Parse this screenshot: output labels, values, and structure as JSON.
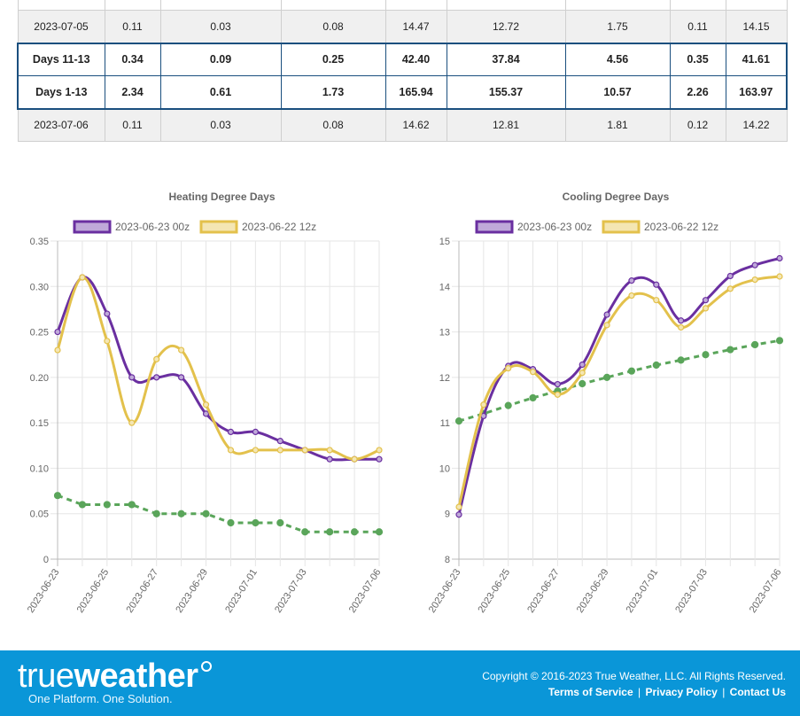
{
  "table": {
    "rows": [
      {
        "style": "top-cut",
        "cells": [
          "",
          "",
          "",
          "",
          "",
          "",
          "",
          "",
          ""
        ]
      },
      {
        "style": "plain",
        "cells": [
          "2023-07-05",
          "0.11",
          "0.03",
          "0.08",
          "14.47",
          "12.72",
          "1.75",
          "0.11",
          "14.15"
        ]
      },
      {
        "style": "hl r1",
        "cells": [
          "Days 11-13",
          "0.34",
          "0.09",
          "0.25",
          "42.40",
          "37.84",
          "4.56",
          "0.35",
          "41.61"
        ]
      },
      {
        "style": "hl r2",
        "cells": [
          "Days 1-13",
          "2.34",
          "0.61",
          "1.73",
          "165.94",
          "155.37",
          "10.57",
          "2.26",
          "163.97"
        ]
      },
      {
        "style": "plain",
        "cells": [
          "2023-07-06",
          "0.11",
          "0.03",
          "0.08",
          "14.62",
          "12.81",
          "1.81",
          "0.12",
          "14.22"
        ]
      }
    ]
  },
  "chart_data": [
    {
      "type": "line",
      "title": "Heating Degree Days",
      "ylim": [
        0,
        0.35
      ],
      "yticks": [
        "0",
        "0.05",
        "0.10",
        "0.15",
        "0.20",
        "0.25",
        "0.30",
        "0.35"
      ],
      "x": [
        "2023-06-23",
        "2023-06-24",
        "2023-06-25",
        "2023-06-26",
        "2023-06-27",
        "2023-06-28",
        "2023-06-29",
        "2023-06-30",
        "2023-07-01",
        "2023-07-02",
        "2023-07-03",
        "2023-07-04",
        "2023-07-05",
        "2023-07-06"
      ],
      "xticks": [
        "2023-06-23",
        "2023-06-25",
        "2023-06-27",
        "2023-06-29",
        "2023-07-01",
        "2023-07-03",
        "2023-07-06"
      ],
      "grid": true,
      "legend": "top",
      "series": [
        {
          "name": "2023-06-23 00z",
          "color": "#6a2fa0",
          "fill": "#bfa9d9",
          "style": "solid",
          "values": [
            0.25,
            0.31,
            0.27,
            0.2,
            0.2,
            0.2,
            0.16,
            0.14,
            0.14,
            0.13,
            0.12,
            0.11,
            0.11,
            0.11
          ]
        },
        {
          "name": "2023-06-22 12z",
          "color": "#e3c14c",
          "fill": "#f4e6b3",
          "style": "solid",
          "values": [
            0.23,
            0.31,
            0.24,
            0.15,
            0.22,
            0.23,
            0.17,
            0.12,
            0.12,
            0.12,
            0.12,
            0.12,
            0.11,
            0.12
          ]
        },
        {
          "name": "",
          "color": "#5aa55a",
          "fill": "#5aa55a",
          "style": "dashed",
          "values": [
            0.07,
            0.06,
            0.06,
            0.06,
            0.05,
            0.05,
            0.05,
            0.04,
            0.04,
            0.04,
            0.03,
            0.03,
            0.03,
            0.03
          ]
        }
      ]
    },
    {
      "type": "line",
      "title": "Cooling Degree Days",
      "ylim": [
        8,
        15
      ],
      "yticks": [
        "8",
        "9",
        "10",
        "11",
        "12",
        "13",
        "14",
        "15"
      ],
      "x": [
        "2023-06-23",
        "2023-06-24",
        "2023-06-25",
        "2023-06-26",
        "2023-06-27",
        "2023-06-28",
        "2023-06-29",
        "2023-06-30",
        "2023-07-01",
        "2023-07-02",
        "2023-07-03",
        "2023-07-04",
        "2023-07-05",
        "2023-07-06"
      ],
      "xticks": [
        "2023-06-23",
        "2023-06-25",
        "2023-06-27",
        "2023-06-29",
        "2023-07-01",
        "2023-07-03",
        "2023-07-06"
      ],
      "grid": true,
      "legend": "top",
      "series": [
        {
          "name": "2023-06-23 00z",
          "color": "#6a2fa0",
          "fill": "#bfa9d9",
          "style": "solid",
          "values": [
            8.98,
            11.15,
            12.25,
            12.18,
            11.85,
            12.28,
            13.38,
            14.13,
            14.04,
            13.25,
            13.7,
            14.23,
            14.47,
            14.62
          ]
        },
        {
          "name": "2023-06-22 12z",
          "color": "#e3c14c",
          "fill": "#f4e6b3",
          "style": "solid",
          "values": [
            9.15,
            11.4,
            12.2,
            12.12,
            11.62,
            12.1,
            13.15,
            13.8,
            13.7,
            13.1,
            13.52,
            13.95,
            14.15,
            14.22
          ]
        },
        {
          "name": "",
          "color": "#5aa55a",
          "fill": "#5aa55a",
          "style": "dashed",
          "values": [
            11.04,
            11.2,
            11.38,
            11.55,
            11.7,
            11.86,
            12.0,
            12.14,
            12.27,
            12.38,
            12.5,
            12.61,
            12.72,
            12.81
          ]
        }
      ]
    }
  ],
  "footer": {
    "logo_word_light": "true",
    "logo_word_bold": "weather",
    "tagline": "One Platform. One Solution.",
    "copyright": "Copyright © 2016-2023 True Weather, LLC. All Rights Reserved.",
    "links": [
      "Terms of Service",
      "Privacy Policy",
      "Contact Us"
    ],
    "link_separator": "|",
    "background": "#0a96d8"
  }
}
